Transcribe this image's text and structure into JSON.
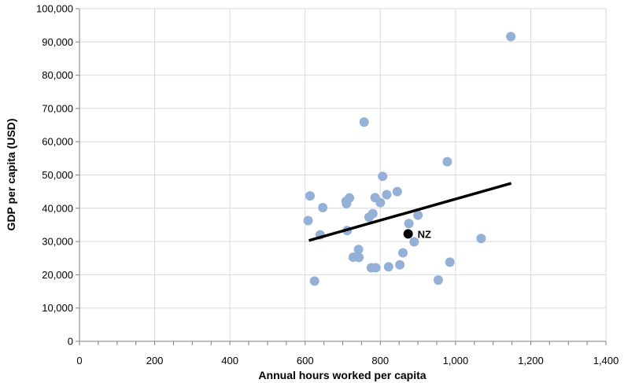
{
  "chart_data": {
    "type": "scatter",
    "xlabel": "Annual hours worked per capita",
    "ylabel": "GDP per capita (USD)",
    "xlim": [
      0,
      1400
    ],
    "ylim": [
      0,
      100000
    ],
    "x_ticks": [
      0,
      200,
      400,
      600,
      800,
      1000,
      1200,
      1400
    ],
    "x_tick_labels": [
      "0",
      "200",
      "400",
      "600",
      "800",
      "1,000",
      "1,200",
      "1,400"
    ],
    "y_ticks": [
      0,
      10000,
      20000,
      30000,
      40000,
      50000,
      60000,
      70000,
      80000,
      90000,
      100000
    ],
    "y_tick_labels": [
      "0",
      "10,000",
      "20,000",
      "30,000",
      "40,000",
      "50,000",
      "60,000",
      "70,000",
      "80,000",
      "90,000",
      "100,000"
    ],
    "grid": true,
    "legend": "none",
    "colors": {
      "points": "#94b0d6",
      "highlight": "#000000",
      "trendline": "#000000",
      "grid": "#d9d9d9",
      "axis": "#7f7f7f"
    },
    "series": [
      {
        "points": [
          [
            608,
            36300
          ],
          [
            613,
            43700
          ],
          [
            625,
            18100
          ],
          [
            640,
            32000
          ],
          [
            647,
            40200
          ],
          [
            709,
            42100
          ],
          [
            710,
            41400
          ],
          [
            712,
            33300
          ],
          [
            718,
            43100
          ],
          [
            728,
            25300
          ],
          [
            742,
            27600
          ],
          [
            743,
            25200
          ],
          [
            757,
            65900
          ],
          [
            770,
            37300
          ],
          [
            776,
            22100
          ],
          [
            780,
            38400
          ],
          [
            786,
            43200
          ],
          [
            788,
            22100
          ],
          [
            800,
            41700
          ],
          [
            806,
            49600
          ],
          [
            817,
            44100
          ],
          [
            822,
            22400
          ],
          [
            845,
            45000
          ],
          [
            852,
            23000
          ],
          [
            860,
            26600
          ],
          [
            876,
            35400
          ],
          [
            890,
            29900
          ],
          [
            900,
            37900
          ],
          [
            954,
            18400
          ],
          [
            978,
            54000
          ],
          [
            985,
            23800
          ],
          [
            1068,
            30900
          ],
          [
            1147,
            91600
          ]
        ]
      }
    ],
    "highlight_point": {
      "label": "NZ",
      "x": 874,
      "y": 32300
    },
    "trendline": {
      "x1": 610,
      "y1": 30300,
      "x2": 1148,
      "y2": 47500
    }
  }
}
